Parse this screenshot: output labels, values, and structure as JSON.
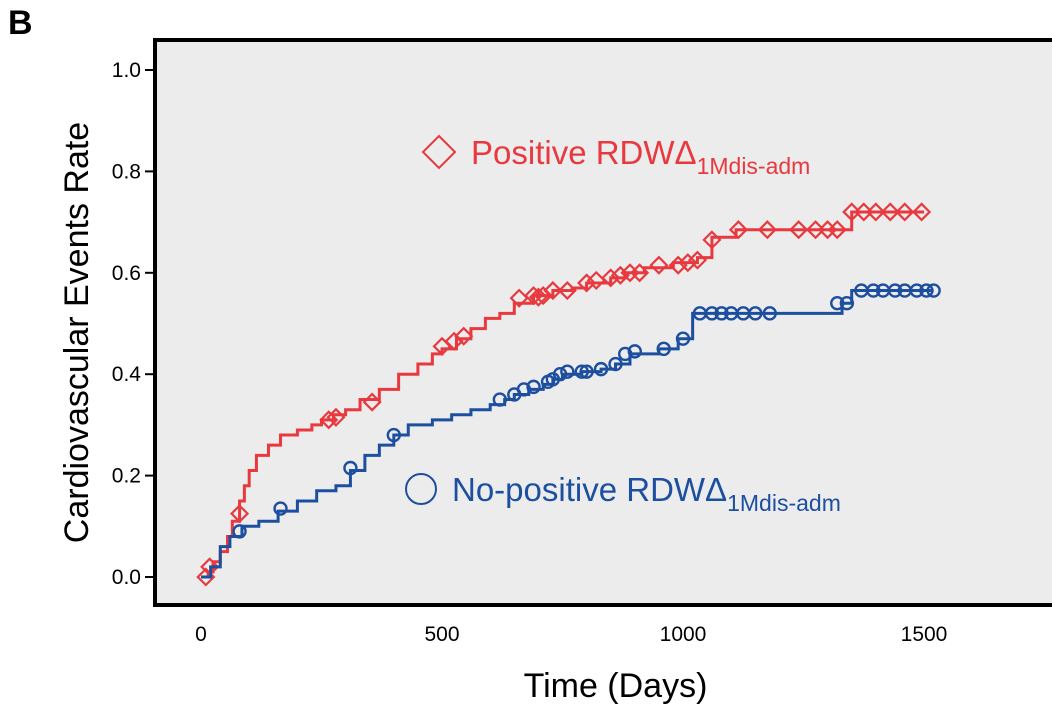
{
  "panel_label": "B",
  "chart_data": {
    "type": "line",
    "subtype": "kaplan-meier-cumulative-incidence",
    "title": "",
    "xlabel": "Time (Days)",
    "ylabel": "Cardiovascular Events Rate",
    "xlim": [
      -100,
      1750
    ],
    "ylim": [
      -0.05,
      1.05
    ],
    "x_ticks": [
      0,
      500,
      1000,
      1500
    ],
    "x_tick_labels": [
      "0",
      "500",
      "1000",
      "1500"
    ],
    "y_ticks": [
      0.0,
      0.2,
      0.4,
      0.6,
      0.8,
      1.0
    ],
    "y_tick_labels": [
      "0.0",
      "0.2",
      "0.4",
      "0.6",
      "0.8",
      "1.0"
    ],
    "grid": false,
    "plot_background": "#ececec",
    "legend": {
      "placement": "inline"
    },
    "series": [
      {
        "name_main": "Positive RDWΔ",
        "name_sub": "1Mdis-adm",
        "color": "#e8393f",
        "marker": "diamond",
        "points": [
          [
            0,
            0
          ],
          [
            15,
            0.01
          ],
          [
            25,
            0.03
          ],
          [
            40,
            0.05
          ],
          [
            55,
            0.08
          ],
          [
            65,
            0.11
          ],
          [
            80,
            0.15
          ],
          [
            90,
            0.18
          ],
          [
            100,
            0.21
          ],
          [
            115,
            0.24
          ],
          [
            140,
            0.26
          ],
          [
            165,
            0.28
          ],
          [
            200,
            0.29
          ],
          [
            230,
            0.3
          ],
          [
            250,
            0.31
          ],
          [
            275,
            0.32
          ],
          [
            300,
            0.33
          ],
          [
            330,
            0.35
          ],
          [
            370,
            0.37
          ],
          [
            410,
            0.4
          ],
          [
            450,
            0.42
          ],
          [
            480,
            0.44
          ],
          [
            500,
            0.45
          ],
          [
            530,
            0.47
          ],
          [
            560,
            0.49
          ],
          [
            590,
            0.51
          ],
          [
            620,
            0.52
          ],
          [
            650,
            0.54
          ],
          [
            690,
            0.555
          ],
          [
            730,
            0.565
          ],
          [
            770,
            0.57
          ],
          [
            800,
            0.58
          ],
          [
            850,
            0.59
          ],
          [
            880,
            0.6
          ],
          [
            920,
            0.61
          ],
          [
            980,
            0.62
          ],
          [
            1030,
            0.63
          ],
          [
            1060,
            0.67
          ],
          [
            1110,
            0.685
          ],
          [
            1300,
            0.685
          ],
          [
            1350,
            0.72
          ],
          [
            1500,
            0.72
          ]
        ],
        "censors": [
          [
            10,
            0
          ],
          [
            18,
            0.02
          ],
          [
            80,
            0.125
          ],
          [
            265,
            0.31
          ],
          [
            280,
            0.315
          ],
          [
            355,
            0.345
          ],
          [
            500,
            0.455
          ],
          [
            525,
            0.465
          ],
          [
            545,
            0.475
          ],
          [
            660,
            0.55
          ],
          [
            690,
            0.555
          ],
          [
            700,
            0.552
          ],
          [
            710,
            0.555
          ],
          [
            730,
            0.565
          ],
          [
            760,
            0.565
          ],
          [
            800,
            0.58
          ],
          [
            820,
            0.585
          ],
          [
            850,
            0.59
          ],
          [
            870,
            0.595
          ],
          [
            890,
            0.6
          ],
          [
            910,
            0.6
          ],
          [
            950,
            0.615
          ],
          [
            990,
            0.615
          ],
          [
            1010,
            0.62
          ],
          [
            1030,
            0.625
          ],
          [
            1060,
            0.665
          ],
          [
            1115,
            0.685
          ],
          [
            1175,
            0.685
          ],
          [
            1240,
            0.685
          ],
          [
            1275,
            0.685
          ],
          [
            1300,
            0.685
          ],
          [
            1320,
            0.685
          ],
          [
            1350,
            0.72
          ],
          [
            1375,
            0.72
          ],
          [
            1400,
            0.72
          ],
          [
            1430,
            0.72
          ],
          [
            1460,
            0.72
          ],
          [
            1495,
            0.72
          ]
        ]
      },
      {
        "name_main": "No-positive RDWΔ",
        "name_sub": "1Mdis-adm",
        "color": "#1d4fa0",
        "marker": "circle",
        "points": [
          [
            0,
            0
          ],
          [
            20,
            0.02
          ],
          [
            40,
            0.06
          ],
          [
            60,
            0.08
          ],
          [
            85,
            0.1
          ],
          [
            120,
            0.11
          ],
          [
            160,
            0.13
          ],
          [
            200,
            0.15
          ],
          [
            240,
            0.17
          ],
          [
            280,
            0.18
          ],
          [
            310,
            0.21
          ],
          [
            340,
            0.24
          ],
          [
            370,
            0.26
          ],
          [
            400,
            0.28
          ],
          [
            430,
            0.3
          ],
          [
            480,
            0.31
          ],
          [
            520,
            0.32
          ],
          [
            560,
            0.33
          ],
          [
            600,
            0.34
          ],
          [
            630,
            0.35
          ],
          [
            650,
            0.36
          ],
          [
            680,
            0.37
          ],
          [
            710,
            0.38
          ],
          [
            730,
            0.39
          ],
          [
            750,
            0.4
          ],
          [
            790,
            0.405
          ],
          [
            830,
            0.41
          ],
          [
            860,
            0.42
          ],
          [
            890,
            0.44
          ],
          [
            950,
            0.45
          ],
          [
            990,
            0.47
          ],
          [
            1020,
            0.52
          ],
          [
            1330,
            0.54
          ],
          [
            1350,
            0.565
          ],
          [
            1520,
            0.565
          ]
        ],
        "censors": [
          [
            80,
            0.09
          ],
          [
            165,
            0.135
          ],
          [
            310,
            0.215
          ],
          [
            400,
            0.28
          ],
          [
            620,
            0.35
          ],
          [
            650,
            0.36
          ],
          [
            670,
            0.37
          ],
          [
            690,
            0.375
          ],
          [
            720,
            0.385
          ],
          [
            730,
            0.39
          ],
          [
            745,
            0.4
          ],
          [
            760,
            0.405
          ],
          [
            790,
            0.405
          ],
          [
            800,
            0.405
          ],
          [
            830,
            0.41
          ],
          [
            860,
            0.42
          ],
          [
            880,
            0.44
          ],
          [
            900,
            0.445
          ],
          [
            960,
            0.45
          ],
          [
            1000,
            0.47
          ],
          [
            1035,
            0.52
          ],
          [
            1060,
            0.52
          ],
          [
            1080,
            0.52
          ],
          [
            1100,
            0.52
          ],
          [
            1125,
            0.52
          ],
          [
            1150,
            0.52
          ],
          [
            1180,
            0.52
          ],
          [
            1320,
            0.54
          ],
          [
            1340,
            0.54
          ],
          [
            1370,
            0.565
          ],
          [
            1395,
            0.565
          ],
          [
            1415,
            0.565
          ],
          [
            1440,
            0.565
          ],
          [
            1460,
            0.565
          ],
          [
            1485,
            0.565
          ],
          [
            1505,
            0.565
          ],
          [
            1520,
            0.565
          ]
        ]
      }
    ]
  }
}
